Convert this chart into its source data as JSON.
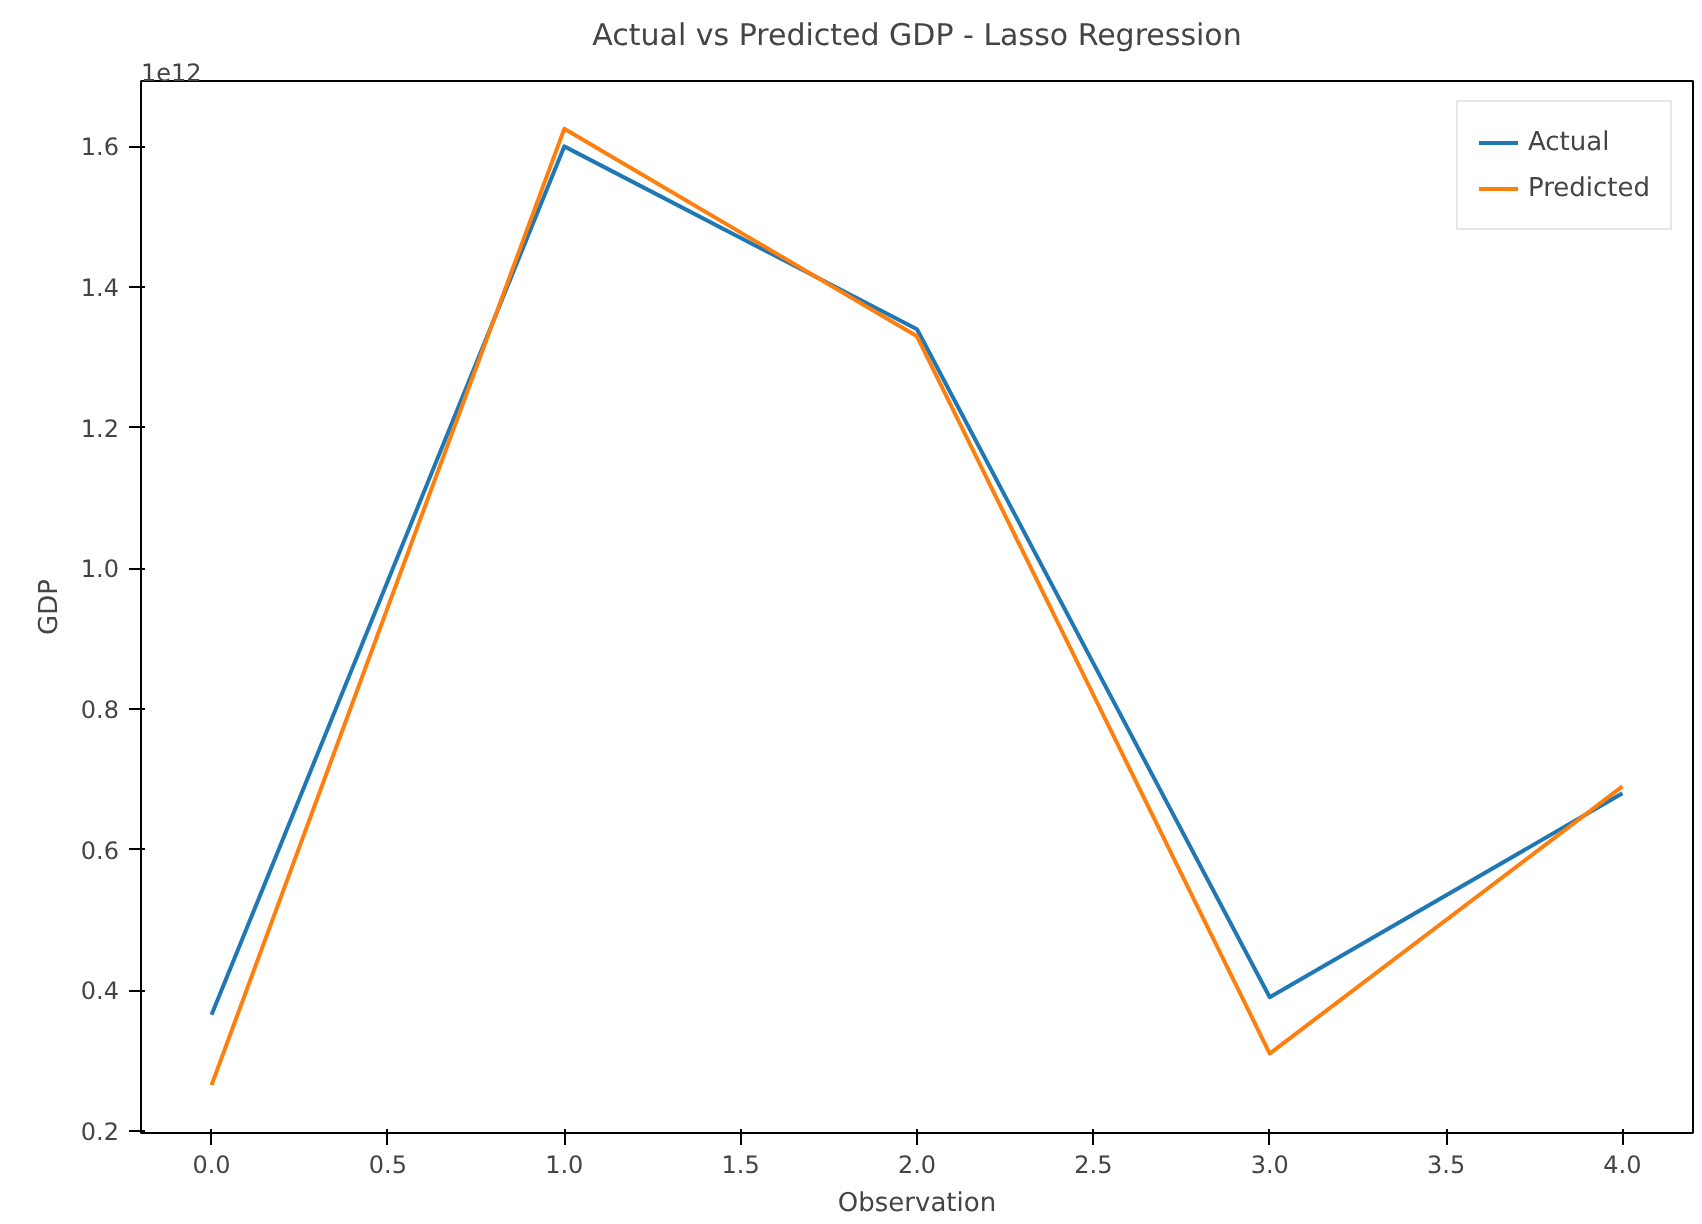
{
  "chart_data": {
    "type": "line",
    "title": "Actual vs Predicted GDP - Lasso Regression",
    "xlabel": "Observation",
    "ylabel": "GDP",
    "annotations": [
      "1e12"
    ],
    "x": [
      0,
      1,
      2,
      3,
      4
    ],
    "series": [
      {
        "name": "Actual",
        "color": "#1f77b4",
        "values": [
          0.365,
          1.6,
          1.34,
          0.39,
          0.68
        ]
      },
      {
        "name": "Predicted",
        "color": "#ff7f0e",
        "values": [
          0.265,
          1.625,
          1.33,
          0.31,
          0.69
        ]
      }
    ],
    "xlim": [
      -0.2,
      4.2
    ],
    "xticks": [
      {
        "value": 0,
        "label": "0.0"
      },
      {
        "value": 0.5,
        "label": "0.5"
      },
      {
        "value": 1,
        "label": "1.0"
      },
      {
        "value": 1.5,
        "label": "1.5"
      },
      {
        "value": 2,
        "label": "2.0"
      },
      {
        "value": 2.5,
        "label": "2.5"
      },
      {
        "value": 3,
        "label": "3.0"
      },
      {
        "value": 3.5,
        "label": "3.5"
      },
      {
        "value": 4,
        "label": "4.0"
      }
    ],
    "ylim": [
      0.197,
      1.693
    ],
    "yticks": [
      0.2,
      0.4,
      0.6,
      0.8,
      {
        "value": 1,
        "label": "1.0"
      },
      1.2,
      1.4,
      1.6
    ],
    "grid": false,
    "legend": "top right"
  }
}
